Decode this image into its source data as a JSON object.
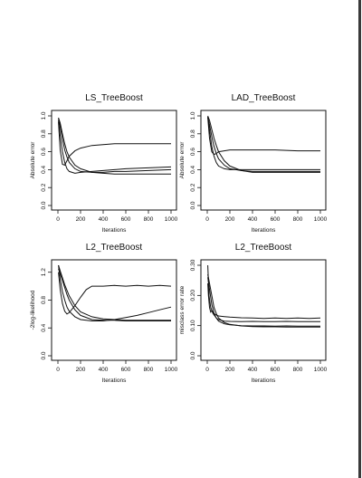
{
  "page": {
    "edge_color": "#3a3a3a"
  },
  "chart_data": [
    {
      "type": "line",
      "title": "LS_TreeBoost",
      "xlabel": "Iterations",
      "ylabel": "Absolute error",
      "xlim": [
        0,
        1000
      ],
      "ylim": [
        0,
        1.0
      ],
      "xticks": [
        0,
        200,
        400,
        600,
        800,
        1000
      ],
      "yticks": [
        "0.0",
        "0.2",
        "0.4",
        "0.6",
        "0.8",
        "1.0"
      ],
      "series": [
        {
          "x": [
            5,
            20,
            40,
            60,
            80,
            100,
            150,
            200,
            300,
            400,
            500,
            600,
            800,
            1000
          ],
          "y": [
            0.93,
            0.62,
            0.46,
            0.45,
            0.5,
            0.55,
            0.61,
            0.64,
            0.67,
            0.68,
            0.69,
            0.69,
            0.69,
            0.69
          ]
        },
        {
          "x": [
            5,
            20,
            40,
            60,
            80,
            100,
            150,
            200,
            300,
            400,
            500,
            600,
            800,
            1000
          ],
          "y": [
            0.95,
            0.78,
            0.6,
            0.48,
            0.41,
            0.38,
            0.36,
            0.37,
            0.38,
            0.39,
            0.4,
            0.41,
            0.42,
            0.43
          ]
        },
        {
          "x": [
            5,
            20,
            40,
            60,
            80,
            100,
            150,
            200,
            300,
            400,
            500,
            600,
            800,
            1000
          ],
          "y": [
            0.97,
            0.88,
            0.74,
            0.62,
            0.54,
            0.48,
            0.41,
            0.38,
            0.37,
            0.37,
            0.38,
            0.38,
            0.39,
            0.4
          ]
        },
        {
          "x": [
            5,
            20,
            40,
            60,
            80,
            100,
            150,
            200,
            300,
            400,
            500,
            600,
            800,
            1000
          ],
          "y": [
            0.98,
            0.92,
            0.8,
            0.69,
            0.6,
            0.54,
            0.45,
            0.41,
            0.37,
            0.36,
            0.35,
            0.35,
            0.35,
            0.35
          ]
        }
      ]
    },
    {
      "type": "line",
      "title": "LAD_TreeBoost",
      "xlabel": "Iterations",
      "ylabel": "Absolute error",
      "xlim": [
        0,
        1000
      ],
      "ylim": [
        0,
        1.0
      ],
      "xticks": [
        0,
        200,
        400,
        600,
        800,
        1000
      ],
      "yticks": [
        "0.0",
        "0.2",
        "0.4",
        "0.6",
        "0.8",
        "1.0"
      ],
      "series": [
        {
          "x": [
            5,
            20,
            40,
            60,
            80,
            100,
            150,
            200,
            300,
            400,
            500,
            600,
            800,
            1000
          ],
          "y": [
            0.98,
            0.75,
            0.6,
            0.57,
            0.58,
            0.6,
            0.61,
            0.62,
            0.62,
            0.62,
            0.62,
            0.62,
            0.61,
            0.61
          ]
        },
        {
          "x": [
            5,
            20,
            40,
            60,
            80,
            100,
            150,
            200,
            300,
            400,
            500,
            600,
            800,
            1000
          ],
          "y": [
            0.99,
            0.84,
            0.66,
            0.55,
            0.48,
            0.44,
            0.41,
            0.4,
            0.4,
            0.4,
            0.4,
            0.4,
            0.4,
            0.4
          ]
        },
        {
          "x": [
            5,
            20,
            40,
            60,
            80,
            100,
            150,
            200,
            300,
            400,
            500,
            600,
            800,
            1000
          ],
          "y": [
            0.99,
            0.9,
            0.77,
            0.66,
            0.58,
            0.52,
            0.45,
            0.41,
            0.39,
            0.38,
            0.38,
            0.38,
            0.38,
            0.38
          ]
        },
        {
          "x": [
            5,
            20,
            40,
            60,
            80,
            100,
            150,
            200,
            300,
            400,
            500,
            600,
            800,
            1000
          ],
          "y": [
            1.0,
            0.95,
            0.85,
            0.75,
            0.67,
            0.6,
            0.5,
            0.44,
            0.39,
            0.37,
            0.37,
            0.37,
            0.37,
            0.37
          ]
        }
      ]
    },
    {
      "type": "line",
      "title": "L2_TreeBoost",
      "xlabel": "Iterations",
      "ylabel": "-2log-likelihood",
      "xlim": [
        0,
        1000
      ],
      "ylim": [
        0,
        1.3
      ],
      "xticks": [
        0,
        200,
        400,
        600,
        800,
        1000
      ],
      "yticks": [
        "0.0",
        "0.4",
        "0.8",
        "1.2"
      ],
      "series": [
        {
          "x": [
            5,
            20,
            40,
            60,
            80,
            100,
            150,
            200,
            250,
            300,
            400,
            500,
            600,
            700,
            800,
            900,
            1000
          ],
          "y": [
            1.2,
            0.95,
            0.75,
            0.64,
            0.6,
            0.62,
            0.72,
            0.84,
            0.95,
            1.0,
            1.0,
            1.01,
            1.0,
            1.01,
            1.0,
            1.01,
            1.0
          ]
        },
        {
          "x": [
            5,
            20,
            40,
            60,
            80,
            100,
            150,
            200,
            300,
            400,
            500,
            600,
            700,
            800,
            900,
            1000
          ],
          "y": [
            1.3,
            1.1,
            0.92,
            0.8,
            0.7,
            0.64,
            0.56,
            0.52,
            0.5,
            0.5,
            0.52,
            0.55,
            0.58,
            0.62,
            0.66,
            0.7
          ]
        },
        {
          "x": [
            5,
            20,
            40,
            60,
            80,
            100,
            150,
            200,
            300,
            400,
            500,
            600,
            800,
            1000
          ],
          "y": [
            1.25,
            1.18,
            1.08,
            0.98,
            0.88,
            0.8,
            0.66,
            0.58,
            0.52,
            0.51,
            0.51,
            0.5,
            0.5,
            0.5
          ]
        },
        {
          "x": [
            5,
            20,
            40,
            60,
            80,
            100,
            150,
            200,
            300,
            400,
            500,
            600,
            800,
            1000
          ],
          "y": [
            1.3,
            1.22,
            1.12,
            1.02,
            0.94,
            0.86,
            0.72,
            0.63,
            0.56,
            0.53,
            0.52,
            0.51,
            0.51,
            0.51
          ]
        }
      ]
    },
    {
      "type": "line",
      "title": "L2_TreeBoost",
      "xlabel": "Iterations",
      "ylabel": "misclass error rate",
      "xlim": [
        0,
        1000
      ],
      "ylim": [
        0,
        0.3
      ],
      "xticks": [
        0,
        200,
        400,
        600,
        800,
        1000
      ],
      "yticks": [
        "0.0",
        "0.10",
        "0.20",
        "0.30"
      ],
      "series": [
        {
          "x": [
            5,
            10,
            20,
            30,
            40,
            60,
            80,
            100,
            150,
            200,
            300,
            400,
            500,
            600,
            700,
            800,
            900,
            1000
          ],
          "y": [
            0.24,
            0.2,
            0.16,
            0.145,
            0.15,
            0.14,
            0.135,
            0.132,
            0.13,
            0.128,
            0.126,
            0.125,
            0.124,
            0.125,
            0.124,
            0.125,
            0.124,
            0.125
          ]
        },
        {
          "x": [
            5,
            15,
            30,
            50,
            80,
            100,
            150,
            200,
            300,
            400,
            500,
            600,
            700,
            800,
            900,
            1000
          ],
          "y": [
            0.3,
            0.2,
            0.16,
            0.14,
            0.125,
            0.12,
            0.115,
            0.114,
            0.113,
            0.114,
            0.113,
            0.113,
            0.114,
            0.113,
            0.113,
            0.113
          ]
        },
        {
          "x": [
            5,
            20,
            40,
            60,
            80,
            100,
            150,
            200,
            300,
            400,
            500,
            600,
            700,
            800,
            900,
            1000
          ],
          "y": [
            0.26,
            0.22,
            0.17,
            0.14,
            0.125,
            0.115,
            0.106,
            0.103,
            0.1,
            0.099,
            0.099,
            0.098,
            0.099,
            0.098,
            0.098,
            0.098
          ]
        },
        {
          "x": [
            5,
            20,
            40,
            60,
            80,
            100,
            150,
            200,
            300,
            400,
            500,
            600,
            700,
            800,
            900,
            1000
          ],
          "y": [
            0.27,
            0.24,
            0.2,
            0.16,
            0.14,
            0.125,
            0.11,
            0.104,
            0.099,
            0.097,
            0.096,
            0.096,
            0.095,
            0.095,
            0.095,
            0.095
          ]
        }
      ]
    }
  ]
}
